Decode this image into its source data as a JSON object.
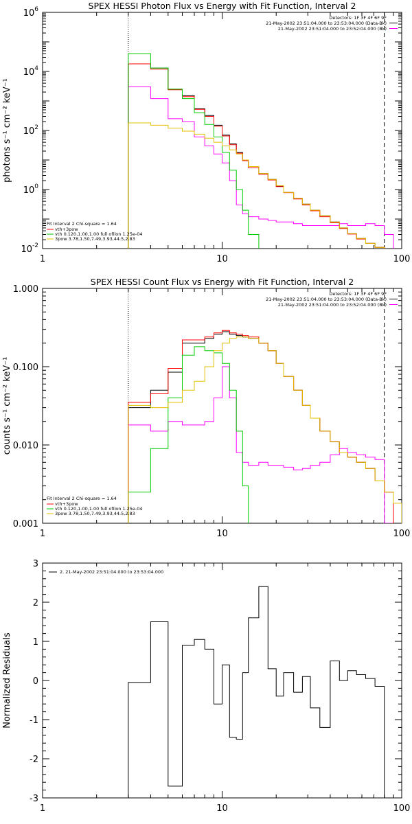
{
  "chart_data": [
    {
      "type": "line",
      "title": "SPEX HESSI Photon Flux vs Energy with Fit Function, Interval 2",
      "ylabel": "photons s⁻¹ cm⁻² keV⁻¹",
      "xscale": "log",
      "yscale": "log",
      "xlim": [
        1,
        100
      ],
      "ylim": [
        0.01,
        1000000
      ],
      "xticks": [
        {
          "v": 1,
          "label": "1"
        },
        {
          "v": 10,
          "label": "10"
        },
        {
          "v": 100,
          "label": "100"
        }
      ],
      "yticks": [
        {
          "v": 0.01,
          "mant": "10",
          "exp": "-2"
        },
        {
          "v": 1,
          "mant": "10",
          "exp": "0"
        },
        {
          "v": 100,
          "mant": "10",
          "exp": "2"
        },
        {
          "v": 10000,
          "mant": "10",
          "exp": "4"
        },
        {
          "v": 1000000,
          "mant": "10",
          "exp": "6"
        }
      ],
      "vlines": [
        {
          "x": 3,
          "style": "dotted"
        },
        {
          "x": 80,
          "style": "dashed"
        }
      ],
      "info_lines": [
        "Detectors: 1F 3F 4F 6F 9F",
        "21-May-2002 23:51:04.000 to 23:53:04.000 (Data-Bk)",
        "21-May-2002 23:51:04.000 to 23:52:04.000 (Bk)"
      ],
      "fit_header": "Fit Interval 2   Chi-square = 1.64",
      "legend": [
        {
          "label": "vth+3pow",
          "color": "#ff0000"
        },
        {
          "label": "vth 0.120,1.00,1.00  full ofilon 1.25e-04",
          "color": "#00cc00"
        },
        {
          "label": "3pow 3.78,1.50,7.49,3.93,44.5,2.83",
          "color": "#e0c000"
        }
      ],
      "edges": [
        3,
        4,
        5,
        6,
        7,
        8,
        9,
        10,
        11,
        12,
        13,
        14,
        16,
        18,
        20,
        22,
        25,
        28,
        31,
        35,
        40,
        45,
        50,
        56,
        63,
        71,
        80,
        90
      ],
      "series": [
        {
          "color": "#000000",
          "values": [
            18000,
            13000,
            2500,
            1500,
            550,
            320,
            150,
            70,
            35,
            18,
            10,
            6,
            3.5,
            2.2,
            1.3,
            0.8,
            0.5,
            0.32,
            0.2,
            0.13,
            0.08,
            0.05,
            0.032,
            0.022,
            0.015,
            0.011,
            0.009
          ]
        },
        {
          "color": "#ff00ff",
          "values": [
            3000,
            1200,
            250,
            200,
            60,
            30,
            16,
            8,
            2,
            0.3,
            0.15,
            0.12,
            0.1,
            0.09,
            0.08,
            0.08,
            0.07,
            0.06,
            0.06,
            0.06,
            0.06,
            0.07,
            0.06,
            0.06,
            0.07,
            0.06,
            0.03
          ]
        },
        {
          "color": "#ff0000",
          "values": [
            18000,
            12000,
            2400,
            1400,
            520,
            300,
            140,
            65,
            33,
            17,
            9.5,
            5.5,
            3.3,
            2.1,
            1.25,
            0.78,
            0.48,
            0.3,
            0.19,
            0.12,
            0.075,
            0.048,
            0.031,
            0.021,
            0.015,
            0.011,
            0.009
          ]
        },
        {
          "color": "#00cc00",
          "values": [
            40000,
            13000,
            2500,
            1200,
            400,
            160,
            60,
            18,
            4.5,
            1,
            0.2,
            0.03,
            0.005
          ]
        },
        {
          "color": "#e0c000",
          "values": [
            180,
            150,
            120,
            95,
            75,
            55,
            40,
            30,
            22,
            16,
            10,
            6,
            3.5,
            2.2,
            1.35,
            0.8,
            0.5,
            0.32,
            0.2,
            0.13,
            0.08,
            0.05,
            0.032,
            0.022,
            0.015,
            0.011,
            0.009
          ]
        }
      ]
    },
    {
      "type": "line",
      "title": "SPEX HESSI Count Flux vs Energy with Fit Function, Interval 2",
      "ylabel": "counts s⁻¹ cm⁻² keV⁻¹",
      "xscale": "log",
      "yscale": "log",
      "xlim": [
        1,
        100
      ],
      "ylim": [
        0.001,
        1
      ],
      "xticks": [
        {
          "v": 1,
          "label": "1"
        },
        {
          "v": 10,
          "label": "10"
        },
        {
          "v": 100,
          "label": "100"
        }
      ],
      "yticks": [
        {
          "v": 0.001,
          "label": "0.001"
        },
        {
          "v": 0.01,
          "label": "0.010"
        },
        {
          "v": 0.1,
          "label": "0.100"
        },
        {
          "v": 1,
          "label": "1.000"
        }
      ],
      "vlines": [
        {
          "x": 3,
          "style": "dotted"
        },
        {
          "x": 80,
          "style": "dashed"
        }
      ],
      "info_lines": [
        "Detectors: 1F 3F 4F 6F 9F",
        "21-May-2002 23:51:04.000 to 23:53:04.000 (Data-Bk)",
        "21-May-2002 23:51:04.000 to 23:52:04.000 (Bk)"
      ],
      "fit_header": "Fit Interval 2   Chi-square = 1.64",
      "legend": [
        {
          "label": "vth+3pow",
          "color": "#ff0000"
        },
        {
          "label": "vth 0.120,1.00,1.00  full ofilon 1.25e-04",
          "color": "#00cc00"
        },
        {
          "label": "3pow 3.78,1.50,7.49,3.93,44.5,2.83",
          "color": "#e0c000"
        }
      ],
      "edges": [
        3,
        4,
        5,
        6,
        7,
        8,
        9,
        10,
        11,
        12,
        13,
        14,
        16,
        18,
        20,
        22,
        25,
        28,
        31,
        35,
        40,
        45,
        50,
        56,
        63,
        71,
        80,
        90,
        100
      ],
      "series": [
        {
          "color": "#000000",
          "values": [
            0.03,
            0.05,
            0.085,
            0.2,
            0.2,
            0.23,
            0.26,
            0.28,
            0.26,
            0.25,
            0.24,
            0.23,
            0.2,
            0.16,
            0.11,
            0.075,
            0.05,
            0.032,
            0.022,
            0.015,
            0.011,
            0.008,
            0.007,
            0.006,
            0.005,
            0.0035,
            0.0025
          ]
        },
        {
          "color": "#ff00ff",
          "values": [
            0.018,
            0.015,
            0.02,
            0.018,
            0.018,
            0.02,
            0.04,
            0.1,
            0.04,
            0.008,
            0.006,
            0.0055,
            0.006,
            0.0055,
            0.0055,
            0.0052,
            0.0048,
            0.005,
            0.0055,
            0.006,
            0.0075,
            0.009,
            0.008,
            0.0075,
            0.007,
            0.0065,
            0.001
          ]
        },
        {
          "color": "#ff0000",
          "values": [
            0.035,
            0.045,
            0.095,
            0.22,
            0.22,
            0.24,
            0.27,
            0.29,
            0.27,
            0.26,
            0.25,
            0.24,
            0.2,
            0.16,
            0.11,
            0.075,
            0.05,
            0.032,
            0.022,
            0.015,
            0.011,
            0.008,
            0.007,
            0.006,
            0.005,
            0.0035,
            0.0025
          ]
        },
        {
          "color": "#00cc00",
          "values": [
            0.0025,
            0.009,
            0.04,
            0.14,
            0.18,
            0.16,
            0.15,
            0.11,
            0.05,
            0.015,
            0.003
          ]
        },
        {
          "color": "#e0c000",
          "values": [
            0.032,
            0.03,
            0.035,
            0.05,
            0.065,
            0.1,
            0.16,
            0.2,
            0.23,
            0.24,
            0.24,
            0.23,
            0.2,
            0.16,
            0.11,
            0.075,
            0.05,
            0.032,
            0.022,
            0.015,
            0.011,
            0.008,
            0.007,
            0.006,
            0.005,
            0.0035,
            0.0025,
            0.0018
          ]
        }
      ]
    },
    {
      "type": "line",
      "title": "",
      "ylabel": "Normalized Residuals",
      "xscale": "log",
      "yscale": "linear",
      "xlim": [
        1,
        100
      ],
      "ylim": [
        -3,
        3
      ],
      "xticks": [
        {
          "v": 1,
          "label": "1"
        },
        {
          "v": 10,
          "label": "10"
        },
        {
          "v": 100,
          "label": "100"
        }
      ],
      "yticks": [
        {
          "v": -3,
          "label": "-3"
        },
        {
          "v": -2,
          "label": "-2"
        },
        {
          "v": -1,
          "label": "-1"
        },
        {
          "v": 0,
          "label": "0"
        },
        {
          "v": 1,
          "label": "1"
        },
        {
          "v": 2,
          "label": "2"
        },
        {
          "v": 3,
          "label": "3"
        }
      ],
      "legend": [
        {
          "label": "2. 21-May-2002 23:51:04.000 to 23:53:04.000",
          "color": "#000000"
        }
      ],
      "edges": [
        3,
        4,
        5,
        6,
        7,
        8,
        9,
        10,
        11,
        12,
        13,
        14,
        16,
        18,
        20,
        22,
        25,
        28,
        31,
        35,
        40,
        45,
        50,
        56,
        63,
        71,
        80
      ],
      "series": [
        {
          "color": "#000000",
          "values": [
            -0.05,
            1.5,
            -2.7,
            0.9,
            1.05,
            0.8,
            -0.6,
            0.4,
            -1.45,
            -1.5,
            0.2,
            1.6,
            2.4,
            0.3,
            -0.4,
            0.2,
            -0.3,
            0.1,
            -0.7,
            -1.2,
            0.5,
            0.0,
            0.25,
            0.15,
            0.05,
            -0.15
          ]
        }
      ]
    }
  ]
}
